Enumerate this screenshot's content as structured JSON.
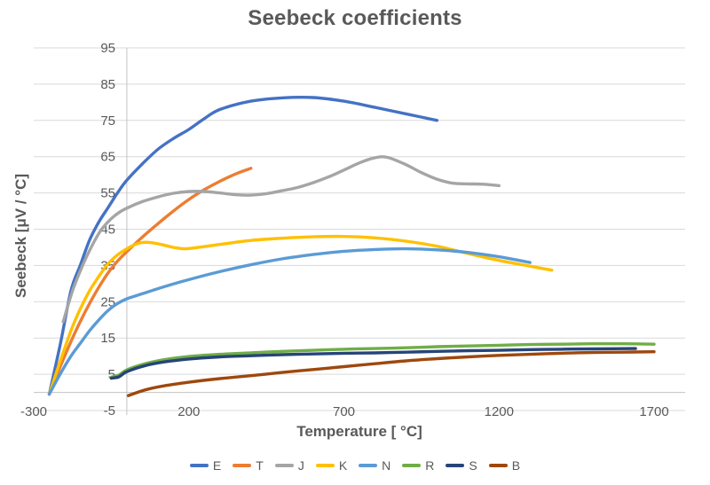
{
  "chart_data": {
    "type": "line",
    "title": "Seebeck coefficients",
    "xlabel": "Temperature [ °C]",
    "ylabel": "Seebeck [μV / °C]",
    "xlim": [
      -300,
      1800
    ],
    "ylim": [
      -5,
      95
    ],
    "x_ticks": [
      -300,
      200,
      700,
      1200,
      1700
    ],
    "y_ticks": [
      95,
      85,
      75,
      65,
      55,
      45,
      35,
      25,
      15,
      5,
      -5
    ],
    "grid": "horizontal-only",
    "legend_position": "bottom",
    "background_color": "#ffffff",
    "gridline_color": "#d9d9d9",
    "axis_line_color": "#c3c3c3",
    "text_color": "#595959",
    "axis_cross_x": 0,
    "axis_cross_y": 0,
    "series": [
      {
        "name": "E",
        "color": "#4472C4",
        "points": [
          [
            -250,
            -0.5
          ],
          [
            -215,
            13
          ],
          [
            -180,
            28
          ],
          [
            -150,
            35
          ],
          [
            -120,
            42
          ],
          [
            -90,
            47
          ],
          [
            -60,
            51
          ],
          [
            -30,
            55
          ],
          [
            0,
            58.5
          ],
          [
            50,
            63
          ],
          [
            100,
            67
          ],
          [
            150,
            70
          ],
          [
            200,
            72.5
          ],
          [
            250,
            75.5
          ],
          [
            300,
            78
          ],
          [
            400,
            80.3
          ],
          [
            500,
            81.2
          ],
          [
            600,
            81.3
          ],
          [
            700,
            80.3
          ],
          [
            800,
            78.6
          ],
          [
            900,
            76.8
          ],
          [
            1000,
            75
          ]
        ]
      },
      {
        "name": "T",
        "color": "#ED7D31",
        "points": [
          [
            -250,
            -0.5
          ],
          [
            -215,
            7
          ],
          [
            -180,
            14
          ],
          [
            -150,
            19.5
          ],
          [
            -120,
            24.5
          ],
          [
            -90,
            29
          ],
          [
            -60,
            33
          ],
          [
            -30,
            36.2
          ],
          [
            0,
            38.8
          ],
          [
            50,
            42.8
          ],
          [
            100,
            46.5
          ],
          [
            150,
            50
          ],
          [
            200,
            53.2
          ],
          [
            250,
            55.9
          ],
          [
            300,
            58.2
          ],
          [
            350,
            60.2
          ],
          [
            400,
            61.8
          ]
        ]
      },
      {
        "name": "J",
        "color": "#A5A5A5",
        "points": [
          [
            -205,
            19.5
          ],
          [
            -175,
            28
          ],
          [
            -145,
            34.5
          ],
          [
            -115,
            40
          ],
          [
            -85,
            44.5
          ],
          [
            -55,
            47.5
          ],
          [
            -25,
            49.6
          ],
          [
            0,
            50.8
          ],
          [
            50,
            52.6
          ],
          [
            100,
            53.9
          ],
          [
            150,
            54.9
          ],
          [
            200,
            55.4
          ],
          [
            250,
            55.4
          ],
          [
            300,
            55
          ],
          [
            350,
            54.5
          ],
          [
            400,
            54.4
          ],
          [
            450,
            54.8
          ],
          [
            500,
            55.6
          ],
          [
            550,
            56.5
          ],
          [
            600,
            57.8
          ],
          [
            650,
            59.4
          ],
          [
            700,
            61.3
          ],
          [
            750,
            63.3
          ],
          [
            800,
            64.7
          ],
          [
            840,
            64.8
          ],
          [
            900,
            62.8
          ],
          [
            950,
            60.6
          ],
          [
            1000,
            58.8
          ],
          [
            1050,
            57.7
          ],
          [
            1100,
            57.5
          ],
          [
            1150,
            57.4
          ],
          [
            1200,
            57
          ]
        ]
      },
      {
        "name": "K",
        "color": "#FFC000",
        "points": [
          [
            -250,
            -0.5
          ],
          [
            -215,
            8.5
          ],
          [
            -180,
            17
          ],
          [
            -150,
            23
          ],
          [
            -120,
            28
          ],
          [
            -90,
            32
          ],
          [
            -60,
            35.5
          ],
          [
            -30,
            37.9
          ],
          [
            0,
            39.6
          ],
          [
            30,
            40.9
          ],
          [
            60,
            41.4
          ],
          [
            100,
            41
          ],
          [
            150,
            40
          ],
          [
            190,
            39.6
          ],
          [
            250,
            40.2
          ],
          [
            300,
            40.8
          ],
          [
            400,
            41.9
          ],
          [
            500,
            42.5
          ],
          [
            600,
            42.9
          ],
          [
            700,
            43
          ],
          [
            800,
            42.6
          ],
          [
            900,
            41.7
          ],
          [
            1000,
            40.3
          ],
          [
            1100,
            38.3
          ],
          [
            1200,
            36.4
          ],
          [
            1300,
            34.8
          ],
          [
            1370,
            33.7
          ]
        ]
      },
      {
        "name": "N",
        "color": "#5B9BD5",
        "points": [
          [
            -250,
            -0.5
          ],
          [
            -215,
            5
          ],
          [
            -180,
            10
          ],
          [
            -150,
            13.5
          ],
          [
            -120,
            17
          ],
          [
            -90,
            20
          ],
          [
            -60,
            22.6
          ],
          [
            -30,
            24.5
          ],
          [
            0,
            25.8
          ],
          [
            50,
            27.2
          ],
          [
            100,
            28.6
          ],
          [
            150,
            29.9
          ],
          [
            200,
            31.1
          ],
          [
            300,
            33.3
          ],
          [
            400,
            35.2
          ],
          [
            500,
            36.8
          ],
          [
            600,
            38
          ],
          [
            700,
            38.9
          ],
          [
            800,
            39.4
          ],
          [
            900,
            39.6
          ],
          [
            1000,
            39.3
          ],
          [
            1100,
            38.6
          ],
          [
            1200,
            37.4
          ],
          [
            1300,
            35.8
          ]
        ]
      },
      {
        "name": "R",
        "color": "#70AD47",
        "points": [
          [
            -50,
            4.2
          ],
          [
            -25,
            4.8
          ],
          [
            0,
            6.2
          ],
          [
            60,
            7.9
          ],
          [
            120,
            9
          ],
          [
            200,
            9.9
          ],
          [
            300,
            10.5
          ],
          [
            400,
            10.9
          ],
          [
            500,
            11.3
          ],
          [
            600,
            11.6
          ],
          [
            700,
            11.9
          ],
          [
            800,
            12.1
          ],
          [
            900,
            12.3
          ],
          [
            1000,
            12.6
          ],
          [
            1100,
            12.8
          ],
          [
            1200,
            13
          ],
          [
            1300,
            13.2
          ],
          [
            1400,
            13.3
          ],
          [
            1500,
            13.4
          ],
          [
            1600,
            13.4
          ],
          [
            1700,
            13.3
          ]
        ]
      },
      {
        "name": "S",
        "color": "#264478",
        "points": [
          [
            -50,
            3.9
          ],
          [
            -25,
            4.3
          ],
          [
            0,
            5.7
          ],
          [
            60,
            7.4
          ],
          [
            120,
            8.4
          ],
          [
            200,
            9.2
          ],
          [
            300,
            9.8
          ],
          [
            400,
            10.1
          ],
          [
            500,
            10.4
          ],
          [
            600,
            10.6
          ],
          [
            700,
            10.8
          ],
          [
            800,
            10.9
          ],
          [
            900,
            11.1
          ],
          [
            1000,
            11.3
          ],
          [
            1100,
            11.5
          ],
          [
            1200,
            11.6
          ],
          [
            1300,
            11.8
          ],
          [
            1400,
            11.9
          ],
          [
            1500,
            12
          ],
          [
            1640,
            12.1
          ]
        ]
      },
      {
        "name": "B",
        "color": "#9E480E",
        "points": [
          [
            5,
            -0.9
          ],
          [
            60,
            0.7
          ],
          [
            120,
            1.8
          ],
          [
            200,
            2.8
          ],
          [
            300,
            3.8
          ],
          [
            400,
            4.6
          ],
          [
            500,
            5.5
          ],
          [
            600,
            6.3
          ],
          [
            700,
            7.1
          ],
          [
            800,
            7.9
          ],
          [
            900,
            8.7
          ],
          [
            1000,
            9.3
          ],
          [
            1100,
            9.8
          ],
          [
            1200,
            10.2
          ],
          [
            1300,
            10.5
          ],
          [
            1400,
            10.8
          ],
          [
            1500,
            11
          ],
          [
            1600,
            11.1
          ],
          [
            1700,
            11.2
          ]
        ]
      }
    ]
  }
}
